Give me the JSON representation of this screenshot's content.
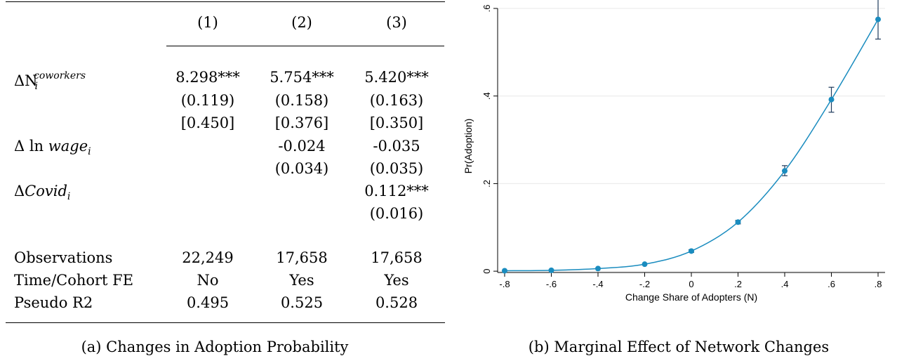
{
  "table": {
    "columns": [
      "(1)",
      "(2)",
      "(3)"
    ],
    "rows": [
      {
        "label_symbol": "ΔN",
        "label_sub": "i",
        "label_sup": "coworkers",
        "values": [
          "8.298***",
          "5.754***",
          "5.420***"
        ]
      },
      {
        "label": "",
        "values": [
          "(0.119)",
          "(0.158)",
          "(0.163)"
        ]
      },
      {
        "label": "",
        "values": [
          "[0.450]",
          "[0.376]",
          "[0.350]"
        ]
      },
      {
        "label_pre": "Δ ln ",
        "label_var": "wage",
        "label_sub": "i",
        "values": [
          "",
          "-0.024",
          "-0.035"
        ]
      },
      {
        "label": "",
        "values": [
          "",
          "(0.034)",
          "(0.035)"
        ]
      },
      {
        "label_pre": "Δ",
        "label_var": "Covid",
        "label_sub": "i",
        "values": [
          "",
          "",
          "0.112***"
        ]
      },
      {
        "label": "",
        "values": [
          "",
          "",
          "(0.016)"
        ]
      }
    ],
    "stats": [
      {
        "label": "Observations",
        "values": [
          "22,249",
          "17,658",
          "17,658"
        ]
      },
      {
        "label": "Time/Cohort FE",
        "values": [
          "No",
          "Yes",
          "Yes"
        ]
      },
      {
        "label": "Pseudo R2",
        "values": [
          "0.495",
          "0.525",
          "0.528"
        ]
      }
    ],
    "caption": "(a) Changes in Adoption Probability"
  },
  "figure": {
    "caption": "(b) Marginal Effect of Network Changes"
  },
  "chart_data": {
    "type": "line",
    "title": "",
    "xlabel": "Change Share of Adopters (N)",
    "ylabel": "Pr(Adoption)",
    "x": [
      -0.8,
      -0.6,
      -0.4,
      -0.2,
      0,
      0.2,
      0.4,
      0.6,
      0.8
    ],
    "series": [
      {
        "values": [
          0.001,
          0.002,
          0.006,
          0.016,
          0.046,
          0.112,
          0.229,
          0.392,
          0.575
        ],
        "ci_low": [
          0.001,
          0.002,
          0.005,
          0.014,
          0.043,
          0.108,
          0.218,
          0.363,
          0.53
        ],
        "ci_high": [
          0.001,
          0.002,
          0.007,
          0.018,
          0.049,
          0.116,
          0.241,
          0.42,
          0.621
        ],
        "color": "#1a8cbf",
        "marker": "circle"
      }
    ],
    "xticks": [
      -0.8,
      -0.6,
      -0.4,
      -0.2,
      0,
      0.2,
      0.4,
      0.6,
      0.8
    ],
    "xtick_labels": [
      "-.8",
      "-.6",
      "-.4",
      "-.2",
      "0",
      ".2",
      ".4",
      ".6",
      ".8"
    ],
    "yticks": [
      0,
      0.2,
      0.4,
      0.6
    ],
    "ytick_labels": [
      "0",
      ".2",
      ".4",
      ".6"
    ],
    "xlim": [
      -0.83,
      0.83
    ],
    "ylim": [
      -0.003,
      0.6
    ],
    "grid": true,
    "legend": "none"
  }
}
